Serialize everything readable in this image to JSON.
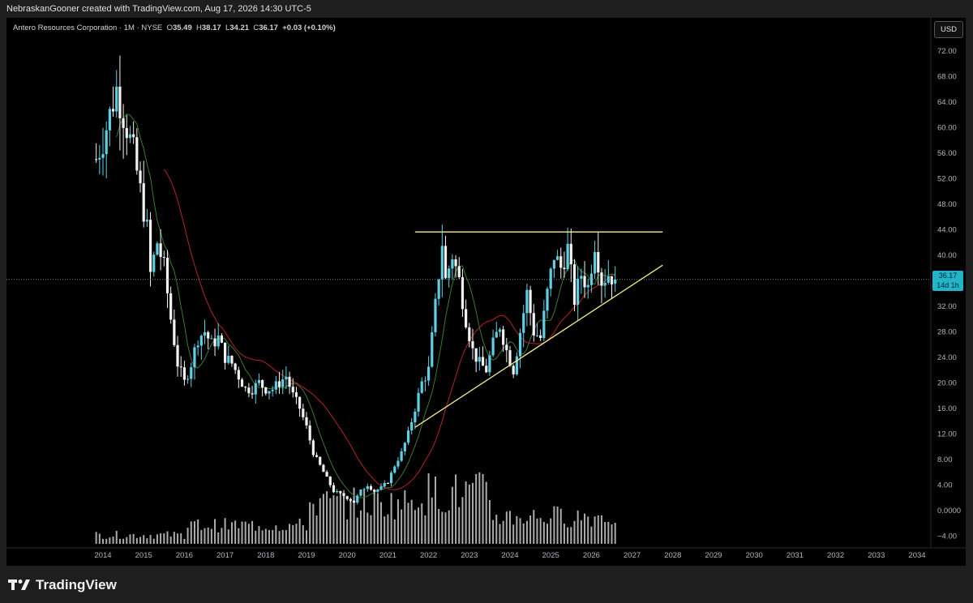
{
  "credit": "NebraskanGooner created with TradingView.com, Aug 17, 2026 14:30 UTC-5",
  "legend": {
    "symbol": "Antero Resources Corporation · 1M · NYSE",
    "open_label": "O",
    "open": "35.49",
    "high_label": "H",
    "high": "38.17",
    "low_label": "L",
    "low": "34.21",
    "close_label": "C",
    "close": "36.17",
    "change": "+0.03 (+0.10%)"
  },
  "currency": "USD",
  "last_price": "36.17",
  "countdown": "14d 1h",
  "brand": "TradingView",
  "colors": {
    "up": "#5fd0e4",
    "down": "#f2f2f2",
    "ma_fast": "#3a7a30",
    "ma_slow": "#b52424",
    "trend": "#f5ef8a",
    "volume": "#e6e6e6",
    "price_tag": "#22b5c9"
  },
  "chart_data": {
    "type": "candlestick",
    "interval": "1M",
    "x_axis_labels": [
      "2014",
      "2015",
      "2016",
      "2017",
      "2018",
      "2019",
      "2020",
      "2021",
      "2022",
      "2023",
      "2024",
      "2025",
      "2026",
      "2027",
      "2028",
      "2029",
      "2030",
      "2031",
      "2032",
      "2033",
      "2034"
    ],
    "y_axis_labels": [
      "72.00",
      "68.00",
      "64.00",
      "60.00",
      "56.00",
      "52.00",
      "48.00",
      "44.00",
      "40.00",
      "32.00",
      "28.00",
      "24.00",
      "20.00",
      "16.00",
      "12.00",
      "8.00",
      "4.00",
      "0.0000",
      "−4.00"
    ],
    "ylim": [
      -5,
      74
    ],
    "price_path": [
      [
        "2013-11",
        55
      ],
      [
        "2014-01",
        58
      ],
      [
        "2014-03",
        62
      ],
      [
        "2014-05",
        66
      ],
      [
        "2014-06",
        64
      ],
      [
        "2014-08",
        60
      ],
      [
        "2014-10",
        56
      ],
      [
        "2014-12",
        50
      ],
      [
        "2015-02",
        44
      ],
      [
        "2015-03",
        37
      ],
      [
        "2015-05",
        42
      ],
      [
        "2015-07",
        38
      ],
      [
        "2015-09",
        30
      ],
      [
        "2015-11",
        23
      ],
      [
        "2016-01",
        20
      ],
      [
        "2016-03",
        23
      ],
      [
        "2016-05",
        27
      ],
      [
        "2016-07",
        28
      ],
      [
        "2016-09",
        26
      ],
      [
        "2016-11",
        27
      ],
      [
        "2017-01",
        24
      ],
      [
        "2017-03",
        23
      ],
      [
        "2017-05",
        21
      ],
      [
        "2017-07",
        19
      ],
      [
        "2017-09",
        19
      ],
      [
        "2017-11",
        20
      ],
      [
        "2018-01",
        19
      ],
      [
        "2018-03",
        19
      ],
      [
        "2018-05",
        20
      ],
      [
        "2018-07",
        21
      ],
      [
        "2018-09",
        18
      ],
      [
        "2018-11",
        16
      ],
      [
        "2019-01",
        13
      ],
      [
        "2019-03",
        9
      ],
      [
        "2019-05",
        7
      ],
      [
        "2019-07",
        5
      ],
      [
        "2019-09",
        3
      ],
      [
        "2019-11",
        2.5
      ],
      [
        "2020-01",
        2
      ],
      [
        "2020-03",
        1.3
      ],
      [
        "2020-05",
        3
      ],
      [
        "2020-07",
        4
      ],
      [
        "2020-09",
        3
      ],
      [
        "2020-11",
        3.5
      ],
      [
        "2021-01",
        4.5
      ],
      [
        "2021-03",
        7
      ],
      [
        "2021-05",
        9
      ],
      [
        "2021-07",
        12
      ],
      [
        "2021-09",
        16
      ],
      [
        "2021-11",
        20
      ],
      [
        "2022-01",
        22
      ],
      [
        "2022-03",
        32
      ],
      [
        "2022-05",
        42
      ],
      [
        "2022-06",
        36
      ],
      [
        "2022-08",
        40
      ],
      [
        "2022-10",
        36
      ],
      [
        "2022-12",
        30
      ],
      [
        "2023-02",
        25
      ],
      [
        "2023-04",
        23
      ],
      [
        "2023-06",
        22
      ],
      [
        "2023-08",
        26
      ],
      [
        "2023-10",
        29
      ],
      [
        "2023-12",
        25
      ],
      [
        "2024-02",
        22
      ],
      [
        "2024-04",
        28
      ],
      [
        "2024-06",
        34
      ],
      [
        "2024-08",
        28
      ],
      [
        "2024-10",
        27
      ],
      [
        "2024-12",
        34
      ],
      [
        "2025-02",
        40
      ],
      [
        "2025-04",
        38
      ],
      [
        "2025-06",
        41
      ],
      [
        "2025-08",
        33
      ],
      [
        "2025-10",
        37
      ],
      [
        "2025-12",
        35
      ],
      [
        "2026-02",
        42
      ],
      [
        "2026-04",
        36
      ],
      [
        "2026-06",
        37
      ],
      [
        "2026-08",
        36.17
      ]
    ],
    "last_bar": {
      "open": 35.49,
      "high": 38.17,
      "low": 34.21,
      "close": 36.17
    },
    "annotations": [
      {
        "type": "horizontal_resistance",
        "y": 43.6,
        "x_start": "2021-09",
        "x_end": "2027-10"
      },
      {
        "type": "rising_trendline",
        "from": [
          "2021-09",
          13
        ],
        "to": [
          "2027-10",
          38.4
        ]
      }
    ]
  }
}
